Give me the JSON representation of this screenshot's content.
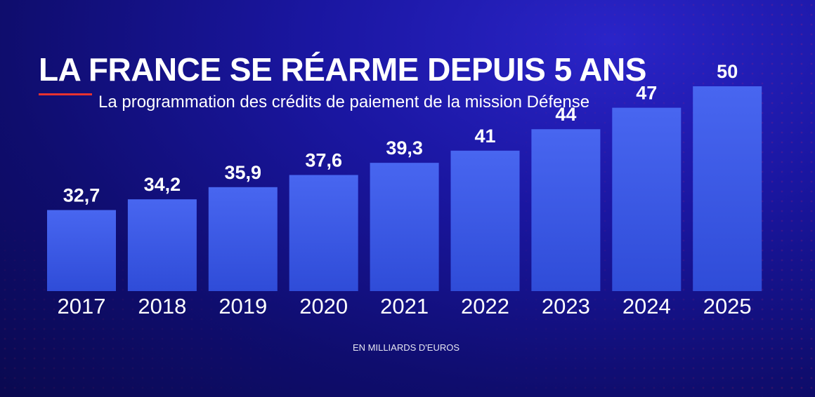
{
  "header": {
    "title": "LA FRANCE SE RÉARME DEPUIS 5 ANS",
    "subtitle": "La programmation des crédits de paiement de la mission Défense",
    "accent_color": "#e8322f"
  },
  "footer": {
    "unit_label": "EN MILLIARDS D'EUROS"
  },
  "chart_data": {
    "type": "bar",
    "title": "LA FRANCE SE RÉARME DEPUIS 5 ANS",
    "subtitle": "La programmation des crédits de paiement de la mission Défense",
    "categories": [
      "2017",
      "2018",
      "2019",
      "2020",
      "2021",
      "2022",
      "2023",
      "2024",
      "2025"
    ],
    "values": [
      32.7,
      34.2,
      35.9,
      37.6,
      39.3,
      41,
      44,
      47,
      50
    ],
    "value_labels": [
      "32,7",
      "34,2",
      "35,9",
      "37,6",
      "39,3",
      "41",
      "44",
      "47",
      "50"
    ],
    "ylabel": "EN MILLIARDS D'EUROS",
    "xlabel": "",
    "grid": false,
    "legend": "none",
    "bar_color": "#3a5ae8"
  }
}
